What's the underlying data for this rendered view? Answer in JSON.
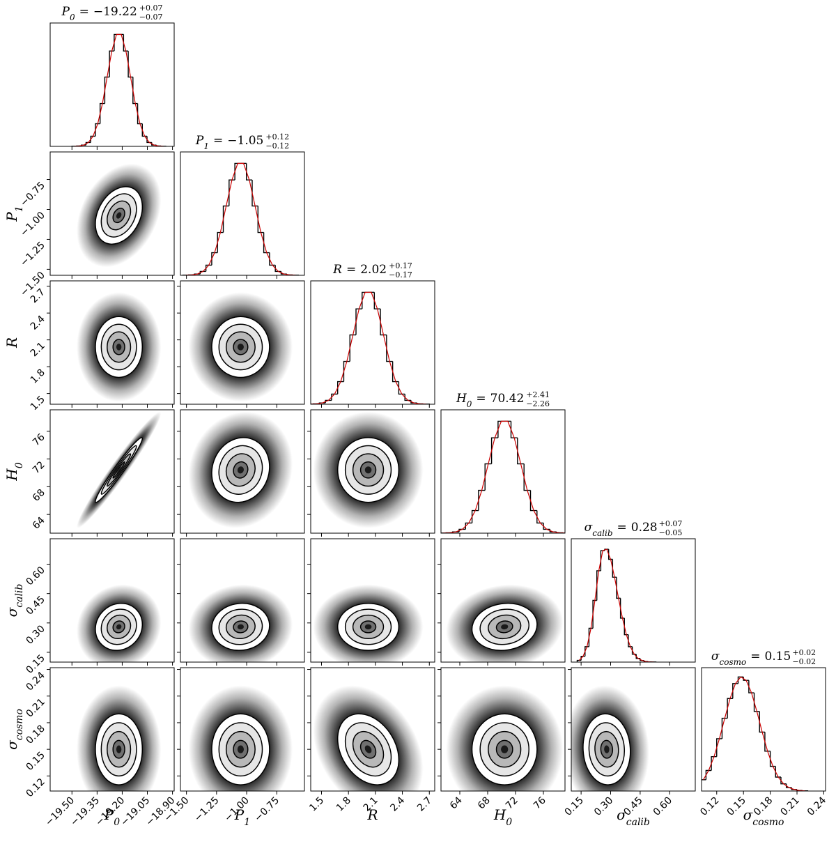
{
  "chart_data": {
    "type": "corner",
    "equals": "=",
    "hist_color": "#000000",
    "fit_color": "#cc0000",
    "hist_ylim": [
      0,
      108
    ],
    "parameters": [
      {
        "symbol": "P",
        "subscript": "0",
        "median": {
          "value": -19.22,
          "label": "−19.22"
        },
        "err_plus": {
          "value": 0.07,
          "label": "+0.07"
        },
        "err_minus": {
          "value": 0.07,
          "label": "−0.07"
        },
        "lim": [
          -19.63,
          -18.89
        ],
        "ticks": [
          {
            "value": -19.5,
            "label": "−19.50"
          },
          {
            "value": -19.35,
            "label": "−19.35"
          },
          {
            "value": -19.2,
            "label": "−19.20"
          },
          {
            "value": -19.05,
            "label": "−19.05"
          },
          {
            "value": -18.9,
            "label": "−18.90"
          }
        ],
        "bins": [
          -19.5,
          -19.472,
          -19.444,
          -19.416,
          -19.388,
          -19.36,
          -19.332,
          -19.304,
          -19.276,
          -19.248,
          -19.22,
          -19.192,
          -19.164,
          -19.136,
          -19.108,
          -19.08,
          -19.052,
          -19.024,
          -18.996,
          -18.968,
          -18.94
        ],
        "counts": [
          0.1,
          0.3,
          1.1,
          3.4,
          8.9,
          19.8,
          37.5,
          60.7,
          83.5,
          98,
          98,
          83.5,
          60.7,
          37.5,
          19.8,
          8.9,
          3.4,
          1.1,
          0.3,
          0.1
        ]
      },
      {
        "symbol": "P",
        "subscript": "1",
        "median": {
          "value": -1.05,
          "label": "−1.05"
        },
        "err_plus": {
          "value": 0.12,
          "label": "+0.12"
        },
        "err_minus": {
          "value": 0.12,
          "label": "−0.12"
        },
        "lim": [
          -1.55,
          -0.52
        ],
        "ticks": [
          {
            "value": -1.5,
            "label": "−1.50"
          },
          {
            "value": -1.25,
            "label": "−1.25"
          },
          {
            "value": -1.0,
            "label": "−1.00"
          },
          {
            "value": -0.75,
            "label": "−0.75"
          }
        ],
        "bins": [
          -1.53,
          -1.482,
          -1.434,
          -1.386,
          -1.338,
          -1.29,
          -1.242,
          -1.194,
          -1.146,
          -1.098,
          -1.05,
          -1.002,
          -0.954,
          -0.906,
          -0.858,
          -0.81,
          -0.762,
          -0.714,
          -0.666,
          -0.618,
          -0.57
        ],
        "counts": [
          0.1,
          0.3,
          1.1,
          3.4,
          8.9,
          19.8,
          37.5,
          60.7,
          83.5,
          98,
          98,
          83.5,
          60.7,
          37.5,
          19.8,
          8.9,
          3.4,
          1.1,
          0.3,
          0.1
        ]
      },
      {
        "symbol": "R",
        "median": 2.02,
        "err_plus": {
          "value": 0.17,
          "label": "+0.17"
        },
        "err_minus": {
          "value": 0.17,
          "label": "−0.17"
        },
        "lim": [
          1.38,
          2.76
        ],
        "ticks": [
          1.5,
          1.8,
          2.1,
          2.4,
          2.7
        ],
        "bins": [
          1.34,
          1.408,
          1.476,
          1.544,
          1.612,
          1.68,
          1.748,
          1.816,
          1.884,
          1.952,
          2.02,
          2.088,
          2.156,
          2.224,
          2.292,
          2.36,
          2.428,
          2.496,
          2.564,
          2.632,
          2.7
        ],
        "counts": [
          0.1,
          0.3,
          1.1,
          3.4,
          8.9,
          19.8,
          37.5,
          60.7,
          83.5,
          98,
          98,
          83.5,
          60.7,
          37.5,
          19.8,
          8.9,
          3.4,
          1.1,
          0.3,
          0.1
        ]
      },
      {
        "symbol": "H",
        "subscript": "0",
        "median": 70.42,
        "err_plus": {
          "value": 2.41,
          "label": "+2.41"
        },
        "err_minus": {
          "value": 2.26,
          "label": "−2.26"
        },
        "lim": [
          61.3,
          79.1
        ],
        "ticks": [
          64,
          68,
          72,
          76
        ],
        "bins": [
          61.1,
          62.03,
          62.96,
          63.9,
          64.83,
          65.76,
          66.69,
          67.62,
          68.56,
          69.49,
          70.42,
          71.35,
          72.28,
          73.22,
          74.15,
          75.08,
          76.01,
          76.94,
          77.88,
          78.81,
          79.74
        ],
        "counts": [
          0.1,
          0.3,
          1.1,
          3.4,
          8.9,
          19.8,
          37.5,
          60.7,
          83.5,
          98,
          98,
          83.5,
          60.7,
          37.5,
          19.8,
          8.9,
          3.4,
          1.1,
          0.3,
          0.1
        ]
      },
      {
        "symbol": "σ",
        "subscript": "calib",
        "median": 0.28,
        "err_plus": {
          "value": 0.07,
          "label": "+0.07"
        },
        "err_minus": {
          "value": 0.05,
          "label": "−0.05"
        },
        "lim": [
          0.1,
          0.73
        ],
        "ticks": [
          0.15,
          {
            "value": 0.3,
            "label": "0.30"
          },
          0.45,
          {
            "value": 0.6,
            "label": "0.60"
          }
        ],
        "bins": [
          0.13,
          0.15,
          0.17,
          0.19,
          0.21,
          0.23,
          0.25,
          0.27,
          0.29,
          0.31,
          0.33,
          0.35,
          0.37,
          0.39,
          0.41,
          0.43,
          0.45,
          0.47,
          0.49,
          0.51,
          0.53
        ],
        "counts": [
          1.5,
          5.1,
          13.5,
          29.6,
          54,
          80,
          97.6,
          98.8,
          90,
          74.3,
          55.9,
          38.5,
          24,
          13.5,
          6.9,
          3.2,
          1.4,
          0.5,
          0.2,
          0.1
        ]
      },
      {
        "symbol": "σ",
        "subscript": "cosmo",
        "median": 0.15,
        "err_plus": {
          "value": 0.02,
          "label": "+0.02"
        },
        "err_minus": {
          "value": 0.02,
          "label": "−0.02"
        },
        "lim": [
          0.103,
          0.242
        ],
        "ticks": [
          0.12,
          0.15,
          0.18,
          0.21,
          0.24
        ],
        "bins": [
          0.102,
          0.108,
          0.114,
          0.12,
          0.126,
          0.132,
          0.138,
          0.144,
          0.15,
          0.156,
          0.162,
          0.168,
          0.174,
          0.18,
          0.186,
          0.192,
          0.198,
          0.204,
          0.21,
          0.216,
          0.222
        ],
        "counts": [
          9.9,
          18,
          30.1,
          45.8,
          63.7,
          81,
          94.1,
          99.9,
          96.9,
          86,
          69.7,
          51.6,
          34.9,
          21.6,
          12.2,
          6.3,
          3,
          1.3,
          0.5,
          0.2
        ]
      }
    ],
    "correlation": [
      [],
      [
        0.3
      ],
      [
        0,
        0
      ],
      [
        0.97,
        0.1,
        0
      ],
      [
        0.1,
        0.05,
        0,
        0.1
      ],
      [
        0,
        0,
        -0.3,
        0,
        -0.05
      ]
    ]
  }
}
